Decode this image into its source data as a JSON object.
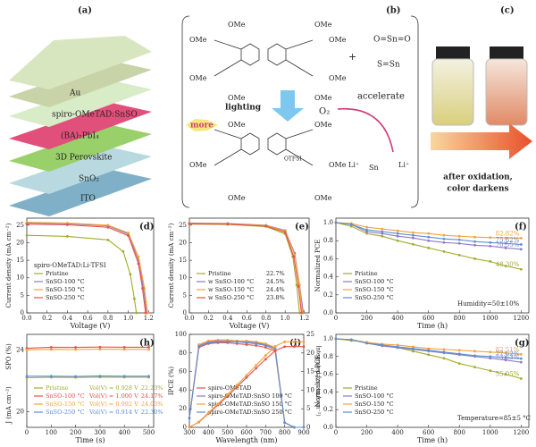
{
  "panels": {
    "a": {
      "label": "(a)",
      "layers": [
        "Au",
        "spiro-OMeTAD:SnSO",
        "(BA)₂PbI₄",
        "3D Perovskite",
        "SnO₂",
        "ITO"
      ]
    },
    "b": {
      "label": "(b)",
      "substituent": "OMe",
      "plus": "+",
      "formulas": [
        "O=Sn=O",
        "S=Sn",
        "Sn"
      ],
      "lighting": "lighting",
      "more": "more",
      "oxygen": "O₂",
      "accelerate": "accelerate",
      "counterion": "OTFSI",
      "cation": "Li⁺"
    },
    "c": {
      "label": "(c)",
      "caption": [
        "after oxidation,",
        "color darkens"
      ]
    }
  },
  "charts": [
    {
      "type": "line",
      "label": "(d)",
      "xlabel": "Voltage (V)",
      "ylabel": "Current density (mA cm⁻²)",
      "legend_title": "spiro-OMeTAD:Li-TFSI",
      "xlim": [
        0,
        1.25
      ],
      "ylim": [
        0,
        27
      ],
      "xticks": [
        {
          "value": 0,
          "label": "0.0"
        },
        0.2,
        0.4,
        0.6,
        0.8,
        {
          "value": 1,
          "label": "1.0"
        },
        1.2
      ],
      "yticks": [
        0,
        5,
        10,
        15,
        20,
        25
      ],
      "series": [
        {
          "name": "Pristine",
          "color": "#a3ab2e",
          "x": [
            0,
            0.4,
            0.8,
            0.95,
            1.02,
            1.06,
            1.08
          ],
          "values": [
            22.1,
            21.8,
            20.8,
            17.5,
            11,
            4,
            0
          ]
        },
        {
          "name": "SnSO-100 °C",
          "color": "#8e7cc3",
          "x": [
            0,
            0.4,
            0.8,
            1.0,
            1.1,
            1.15,
            1.18
          ],
          "values": [
            25.6,
            25.4,
            24.8,
            22.5,
            15,
            7,
            0
          ]
        },
        {
          "name": "SnSO-150 °C",
          "color": "#f2a33a",
          "x": [
            0,
            0.4,
            0.8,
            1.0,
            1.1,
            1.16,
            1.19
          ],
          "values": [
            25.8,
            25.6,
            25,
            22.8,
            16,
            7,
            0
          ]
        },
        {
          "name": "SnSO-250 °C",
          "color": "#e8504a",
          "x": [
            0,
            0.4,
            0.8,
            1.0,
            1.1,
            1.14,
            1.17
          ],
          "values": [
            25.3,
            25.1,
            24.4,
            22,
            14,
            7,
            0
          ]
        }
      ]
    },
    {
      "type": "line",
      "label": "(e)",
      "xlabel": "Voltage (V)",
      "ylabel": "Current density (mA cm⁻²)",
      "xlim": [
        0,
        1.25
      ],
      "ylim": [
        0,
        27
      ],
      "xticks": [
        {
          "value": 0,
          "label": "0.0"
        },
        0.2,
        0.4,
        0.6,
        0.8,
        {
          "value": 1,
          "label": "1.0"
        },
        1.2
      ],
      "yticks": [
        0,
        5,
        10,
        15,
        20,
        25
      ],
      "series": [
        {
          "name": "Pristine",
          "efficiency": "22.7%",
          "color": "#a3ab2e",
          "x": [
            0,
            0.4,
            0.8,
            1.0,
            1.08,
            1.12,
            1.15
          ],
          "values": [
            25.3,
            25.2,
            24.6,
            22.5,
            16,
            8,
            0
          ]
        },
        {
          "name": "w SnSO-100 °C",
          "efficiency": "24.5%",
          "color": "#8e7cc3",
          "x": [
            0,
            0.4,
            0.8,
            1.0,
            1.1,
            1.15,
            1.19
          ],
          "values": [
            25.6,
            25.5,
            25,
            23.5,
            17,
            8,
            0
          ]
        },
        {
          "name": "w SnSO-150 °C",
          "efficiency": "24.4%",
          "color": "#f2a33a",
          "x": [
            0,
            0.4,
            0.8,
            1.0,
            1.1,
            1.15,
            1.18
          ],
          "values": [
            25.5,
            25.4,
            24.9,
            23.3,
            16.5,
            8,
            0
          ]
        },
        {
          "name": "w SnSO-250 °C",
          "efficiency": "23.8%",
          "color": "#e8504a",
          "x": [
            0,
            0.4,
            0.8,
            1.0,
            1.09,
            1.14,
            1.17
          ],
          "values": [
            25.4,
            25.3,
            24.7,
            23,
            16,
            7.5,
            0
          ]
        }
      ]
    },
    {
      "type": "line",
      "label": "(f)",
      "xlabel": "Time (h)",
      "ylabel": "Normalized PCE",
      "annotation": "Humidity=50±10%",
      "xlim": [
        0,
        1250
      ],
      "ylim": [
        0,
        1.05
      ],
      "xticks": [
        0,
        200,
        400,
        600,
        800,
        1000,
        1200
      ],
      "yticks": [
        {
          "value": 0,
          "label": "0.0"
        },
        0.2,
        0.4,
        0.6,
        0.8,
        {
          "value": 1,
          "label": "1.0"
        }
      ],
      "x": [
        0,
        100,
        200,
        300,
        400,
        500,
        600,
        700,
        800,
        900,
        1000,
        1100,
        1200
      ],
      "series": [
        {
          "name": "Pristine",
          "retention": "48.30%",
          "color": "#a3ab2e",
          "values": [
            1,
            0.96,
            0.88,
            0.85,
            0.8,
            0.76,
            0.72,
            0.68,
            0.64,
            0.6,
            0.57,
            0.52,
            0.483
          ]
        },
        {
          "name": "SnSO-100 °C",
          "retention": "70.55%",
          "color": "#8e7cc3",
          "values": [
            1,
            0.98,
            0.9,
            0.88,
            0.85,
            0.83,
            0.8,
            0.78,
            0.77,
            0.75,
            0.74,
            0.72,
            0.7055
          ]
        },
        {
          "name": "SnSO-150 °C",
          "retention": "82.82%",
          "color": "#f2a33a",
          "values": [
            1,
            0.99,
            0.95,
            0.93,
            0.91,
            0.89,
            0.88,
            0.86,
            0.85,
            0.84,
            0.835,
            0.83,
            0.8282
          ]
        },
        {
          "name": "SnSO-250 °C",
          "retention": "75.82%",
          "color": "#5b8fd6",
          "values": [
            1,
            0.98,
            0.92,
            0.9,
            0.88,
            0.86,
            0.84,
            0.82,
            0.81,
            0.79,
            0.78,
            0.77,
            0.7582
          ]
        }
      ]
    },
    {
      "type": "line",
      "label": "(h)",
      "xlabel": "Time (s)",
      "ylabel": "SPO (%)",
      "ylabel_lower": "J (mA cm⁻²)",
      "xlim": [
        0,
        520
      ],
      "ylim": [
        19,
        25
      ],
      "xticks": [
        0,
        100,
        200,
        300,
        400,
        500
      ],
      "yticks": [
        20,
        24
      ],
      "x": [
        0,
        100,
        200,
        300,
        400,
        500
      ],
      "series": [
        {
          "name": "Pristine",
          "note": "Vol(V) = 0.928 V",
          "efficiency": "22.23%",
          "color": "#a3ab2e",
          "values": [
            22.2,
            22.23,
            22.22,
            22.24,
            22.23,
            22.23
          ]
        },
        {
          "name": "SnSO-100 °C",
          "note": "Vol(V) = 1.000 V",
          "efficiency": "24.17%",
          "color": "#e8504a",
          "values": [
            24.1,
            24.17,
            24.16,
            24.18,
            24.17,
            24.17
          ]
        },
        {
          "name": "SnSO-150 °C",
          "note": "Vol(V) = 0.992 V",
          "efficiency": "24.03%",
          "color": "#f2a33a",
          "values": [
            24,
            24.03,
            24.02,
            24.04,
            24.03,
            24.03
          ]
        },
        {
          "name": "SnSO-250 °C",
          "note": "Vol(V) = 0.914 V",
          "efficiency": "22.30%",
          "color": "#5b8fd6",
          "values": [
            22.3,
            22.3,
            22.29,
            22.31,
            22.3,
            22.3
          ]
        }
      ]
    },
    {
      "type": "line",
      "label": "(i)",
      "xlabel": "Wavelength (nm)",
      "ylabel": "IPCE (%)",
      "y2label": "Integrated J_sc (mA cm⁻²)",
      "xlim": [
        300,
        900
      ],
      "ylim": [
        0,
        100
      ],
      "y2lim": [
        0,
        25
      ],
      "xticks": [
        300,
        400,
        500,
        600,
        700,
        800,
        900
      ],
      "yticks": [
        0,
        20,
        40,
        60,
        80,
        100
      ],
      "y2ticks": [
        0,
        5,
        10,
        15,
        20,
        25
      ],
      "x": [
        300,
        350,
        400,
        450,
        500,
        550,
        600,
        650,
        700,
        750,
        800,
        850,
        900
      ],
      "series": [
        {
          "name": "spiro-OMeTAD",
          "color": "#e8504a",
          "values": [
            10,
            86,
            90,
            91,
            91,
            90,
            89,
            88,
            86,
            82,
            5,
            0,
            0
          ]
        },
        {
          "name": "spiro-OMeTAD:SnSO 100 °C",
          "color": "#8e7cc3",
          "values": [
            10,
            88,
            92,
            93,
            93,
            93,
            92,
            91,
            89,
            85,
            5,
            0,
            0
          ]
        },
        {
          "name": "spiro-OMeTAD:SnSO 150 °C",
          "color": "#f2a33a",
          "values": [
            10,
            89,
            93,
            94,
            94,
            93,
            93,
            92,
            90,
            86,
            5,
            0,
            0
          ]
        },
        {
          "name": "spiro-OMeTAD:SnSO 250 °C",
          "color": "#5b8fd6",
          "values": [
            10,
            87,
            91,
            92,
            92,
            92,
            91,
            90,
            88,
            84,
            5,
            0,
            0
          ]
        },
        {
          "color": "#e8504a",
          "axis": "y2",
          "values": [
            0,
            1.4,
            3.7,
            6,
            8.4,
            10.9,
            13.4,
            15.9,
            18.3,
            20.6,
            21.7,
            21.7,
            21.7
          ]
        },
        {
          "color": "#f2a33a",
          "axis": "y2",
          "values": [
            0,
            1.5,
            3.9,
            6.3,
            8.8,
            11.4,
            14,
            16.7,
            19.3,
            21.8,
            23,
            23,
            23
          ]
        }
      ]
    },
    {
      "type": "line",
      "label": "(g)",
      "xlabel": "Time (h)",
      "ylabel": "Normalized PCE",
      "annotation": "Temperature=85±5 °C",
      "xlim": [
        0,
        1250
      ],
      "ylim": [
        0,
        1.05
      ],
      "xticks": [
        0,
        200,
        400,
        600,
        800,
        1000,
        1200
      ],
      "yticks": [
        {
          "value": 0,
          "label": "0.0"
        },
        0.2,
        0.4,
        0.6,
        0.8,
        {
          "value": 1,
          "label": "1.0"
        }
      ],
      "x": [
        0,
        100,
        200,
        300,
        400,
        500,
        600,
        700,
        800,
        900,
        1000,
        1100,
        1200
      ],
      "series": [
        {
          "name": "Pristine",
          "retention": "55.05%",
          "color": "#a3ab2e",
          "values": [
            1,
            0.98,
            0.96,
            0.93,
            0.9,
            0.86,
            0.82,
            0.78,
            0.72,
            0.68,
            0.64,
            0.6,
            0.5505
          ]
        },
        {
          "name": "SnSO-100 °C",
          "retention": "73.53%",
          "color": "#8e7cc3",
          "values": [
            1,
            0.99,
            0.95,
            0.92,
            0.9,
            0.88,
            0.86,
            0.84,
            0.82,
            0.8,
            0.78,
            0.76,
            0.7353
          ]
        },
        {
          "name": "SnSO-150 °C",
          "retention": "82.51%",
          "color": "#f2a33a",
          "values": [
            1,
            0.99,
            0.96,
            0.94,
            0.93,
            0.91,
            0.89,
            0.88,
            0.87,
            0.86,
            0.85,
            0.84,
            0.8251
          ]
        },
        {
          "name": "SnSO-250 °C",
          "retention": "77.62%",
          "color": "#5b8fd6",
          "values": [
            1,
            0.99,
            0.95,
            0.93,
            0.91,
            0.89,
            0.87,
            0.85,
            0.83,
            0.81,
            0.8,
            0.79,
            0.7762
          ]
        }
      ]
    }
  ]
}
